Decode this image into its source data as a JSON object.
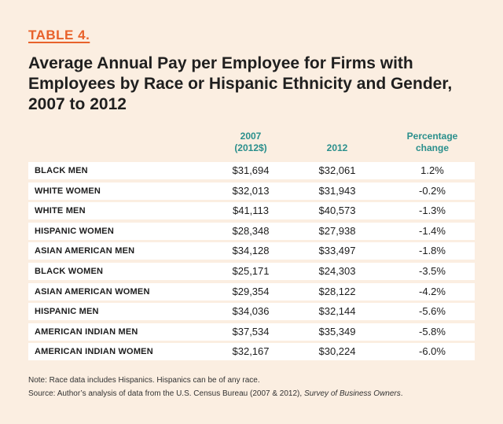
{
  "table_label": "TABLE 4.",
  "title": "Average Annual Pay per Employee for Firms with Employees by Race or Hispanic Ethnicity and Gender, 2007 to 2012",
  "columns": {
    "col1_line1": "2007",
    "col1_line2": "(2012$)",
    "col2": "2012",
    "col3_line1": "Percentage",
    "col3_line2": "change"
  },
  "rows": [
    {
      "group": "BLACK MEN",
      "v2007": "$31,694",
      "v2012": "$32,061",
      "change": "1.2%"
    },
    {
      "group": "WHITE WOMEN",
      "v2007": "$32,013",
      "v2012": "$31,943",
      "change": "-0.2%"
    },
    {
      "group": "WHITE MEN",
      "v2007": "$41,113",
      "v2012": "$40,573",
      "change": "-1.3%"
    },
    {
      "group": "HISPANIC WOMEN",
      "v2007": "$28,348",
      "v2012": "$27,938",
      "change": "-1.4%"
    },
    {
      "group": "ASIAN AMERICAN MEN",
      "v2007": "$34,128",
      "v2012": "$33,497",
      "change": "-1.8%"
    },
    {
      "group": "BLACK WOMEN",
      "v2007": "$25,171",
      "v2012": "$24,303",
      "change": "-3.5%"
    },
    {
      "group": "ASIAN AMERICAN WOMEN",
      "v2007": "$29,354",
      "v2012": "$28,122",
      "change": "-4.2%"
    },
    {
      "group": "HISPANIC MEN",
      "v2007": "$34,036",
      "v2012": "$32,144",
      "change": "-5.6%"
    },
    {
      "group": "AMERICAN INDIAN MEN",
      "v2007": "$37,534",
      "v2012": "$35,349",
      "change": "-5.8%"
    },
    {
      "group": "AMERICAN INDIAN WOMEN",
      "v2007": "$32,167",
      "v2012": "$30,224",
      "change": "-6.0%"
    }
  ],
  "notes": {
    "note1": "Note: Race data includes Hispanics. Hispanics can be of any race.",
    "source_prefix": "Source: Author’s analysis of data from the U.S. Census Bureau (2007 & 2012), ",
    "source_title": "Survey of Business Owners",
    "source_suffix": "."
  },
  "colors": {
    "background": "#fbeee1",
    "accent_orange": "#e8622b",
    "accent_teal": "#2a8f8c"
  }
}
